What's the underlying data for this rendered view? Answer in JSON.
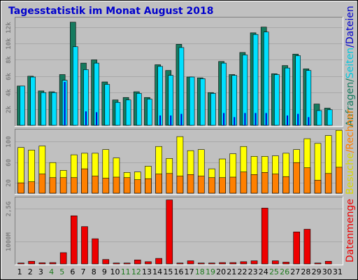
{
  "title": "Tagesstatistik im Monat August 2018",
  "colors": {
    "background": "#C0C0C0",
    "panel": "#C0C0C0",
    "title": "#0000CC",
    "anfragen": "#157A5E",
    "seiten": "#00E0FF",
    "dateien": "#0000CC",
    "besuche": "#FFFF00",
    "rechner": "#FF8000",
    "datenmenge": "#EE0000",
    "weekend_label": "#1E7A1E",
    "weekday_label": "#000000"
  },
  "side_labels": {
    "top": [
      {
        "text": "Anfragen",
        "color": "#157A5E"
      },
      {
        "text": "/",
        "color": "#157A5E"
      },
      {
        "text": "Seiten",
        "color": "#00C8E0"
      },
      {
        "text": "/",
        "color": "#0000CC"
      },
      {
        "text": "Dateien",
        "color": "#0000CC"
      }
    ],
    "middle": [
      {
        "text": "Besuche",
        "color": "#D8D800"
      },
      {
        "text": "/",
        "color": "#FF8000"
      },
      {
        "text": "Rechner",
        "color": "#FF8000"
      }
    ],
    "bottom": [
      {
        "text": "Datenmenge",
        "color": "#EE0000"
      }
    ]
  },
  "chart_data": [
    {
      "type": "bar",
      "name": "requests",
      "ylim": [
        0,
        13000
      ],
      "yticks": [
        2000,
        4000,
        6000,
        8000,
        10000,
        12000
      ],
      "ytick_labels": [
        "2k",
        "4k",
        "6k",
        "8k",
        "10k",
        "12k"
      ],
      "categories": [
        "1",
        "2",
        "3",
        "4",
        "5",
        "6",
        "7",
        "8",
        "9",
        "10",
        "11",
        "12",
        "13",
        "14",
        "15",
        "16",
        "17",
        "18",
        "19",
        "20",
        "21",
        "22",
        "23",
        "24",
        "25",
        "26",
        "27",
        "28",
        "29",
        "30",
        "31"
      ],
      "series": [
        {
          "name": "Anfragen",
          "values": [
            4800,
            6000,
            4200,
            4100,
            6200,
            12600,
            7600,
            8000,
            5300,
            3100,
            3400,
            4100,
            3400,
            7400,
            6700,
            9900,
            5900,
            5800,
            4000,
            7800,
            6200,
            8900,
            11300,
            12000,
            6300,
            7300,
            8700,
            6900,
            2600,
            2100,
            0
          ]
        },
        {
          "name": "Seiten",
          "values": [
            4800,
            5900,
            4000,
            4000,
            5500,
            9600,
            6800,
            7600,
            5000,
            2800,
            3100,
            3900,
            3200,
            7200,
            6100,
            9500,
            5900,
            5700,
            3900,
            7600,
            6100,
            8600,
            11100,
            11400,
            6200,
            7000,
            8500,
            6700,
            1800,
            1900,
            0
          ]
        },
        {
          "name": "Dateien",
          "values": [
            0,
            0,
            0,
            0,
            5300,
            0,
            1700,
            1600,
            0,
            0,
            0,
            0,
            0,
            1200,
            1200,
            1400,
            0,
            0,
            0,
            1500,
            1000,
            1500,
            1500,
            1500,
            0,
            1200,
            1400,
            1000,
            0,
            0,
            0
          ]
        }
      ]
    },
    {
      "type": "bar",
      "name": "visits",
      "ylim": [
        0,
        120
      ],
      "yticks": [
        20,
        60,
        100
      ],
      "ytick_labels": [
        "20",
        "60",
        "100"
      ],
      "categories": [
        "1",
        "2",
        "3",
        "4",
        "5",
        "6",
        "7",
        "8",
        "9",
        "10",
        "11",
        "12",
        "13",
        "14",
        "15",
        "16",
        "17",
        "18",
        "19",
        "20",
        "21",
        "22",
        "23",
        "24",
        "25",
        "26",
        "27",
        "28",
        "29",
        "30",
        "31"
      ],
      "series": [
        {
          "name": "Besuche",
          "values": [
            88,
            83,
            91,
            59,
            44,
            74,
            77,
            77,
            84,
            68,
            40,
            41,
            52,
            90,
            67,
            109,
            82,
            84,
            47,
            66,
            76,
            90,
            71,
            71,
            72,
            77,
            84,
            105,
            96,
            111,
            121
          ]
        },
        {
          "name": "Rechner",
          "values": [
            20,
            22,
            37,
            30,
            30,
            30,
            47,
            33,
            29,
            31,
            30,
            26,
            28,
            37,
            38,
            33,
            36,
            33,
            30,
            30,
            31,
            41,
            36,
            40,
            37,
            32,
            59,
            49,
            25,
            38,
            50
          ]
        }
      ]
    },
    {
      "type": "bar",
      "name": "traffic",
      "ylim": [
        0,
        2950
      ],
      "yticks": [
        1000,
        2500
      ],
      "ytick_labels": [
        "1000M",
        "2,5G"
      ],
      "categories": [
        "1",
        "2",
        "3",
        "4",
        "5",
        "6",
        "7",
        "8",
        "9",
        "10",
        "11",
        "12",
        "13",
        "14",
        "15",
        "16",
        "17",
        "18",
        "19",
        "20",
        "21",
        "22",
        "23",
        "24",
        "25",
        "26",
        "27",
        "28",
        "29",
        "30",
        "31"
      ],
      "series": [
        {
          "name": "Datenmenge",
          "values": [
            40,
            120,
            50,
            60,
            510,
            2180,
            1690,
            1140,
            200,
            40,
            40,
            180,
            100,
            250,
            2900,
            40,
            140,
            40,
            40,
            60,
            60,
            100,
            140,
            2530,
            140,
            80,
            1450,
            1570,
            40,
            120,
            0
          ]
        }
      ]
    }
  ],
  "x_labels": [
    {
      "text": "1",
      "weekend": false
    },
    {
      "text": "2",
      "weekend": false
    },
    {
      "text": "3",
      "weekend": false
    },
    {
      "text": "4",
      "weekend": true
    },
    {
      "text": "5",
      "weekend": true
    },
    {
      "text": "6",
      "weekend": false
    },
    {
      "text": "7",
      "weekend": false
    },
    {
      "text": "8",
      "weekend": false
    },
    {
      "text": "9",
      "weekend": false
    },
    {
      "text": "10",
      "weekend": false
    },
    {
      "text": "11",
      "weekend": true
    },
    {
      "text": "12",
      "weekend": true
    },
    {
      "text": "13",
      "weekend": false
    },
    {
      "text": "14",
      "weekend": false
    },
    {
      "text": "15",
      "weekend": false
    },
    {
      "text": "16",
      "weekend": false
    },
    {
      "text": "17",
      "weekend": false
    },
    {
      "text": "18",
      "weekend": true
    },
    {
      "text": "19",
      "weekend": true
    },
    {
      "text": "20",
      "weekend": false
    },
    {
      "text": "21",
      "weekend": false
    },
    {
      "text": "22",
      "weekend": false
    },
    {
      "text": "23",
      "weekend": false
    },
    {
      "text": "24",
      "weekend": false
    },
    {
      "text": "25",
      "weekend": true
    },
    {
      "text": "26",
      "weekend": true
    },
    {
      "text": "27",
      "weekend": false
    },
    {
      "text": "28",
      "weekend": false
    },
    {
      "text": "29",
      "weekend": false
    },
    {
      "text": "30",
      "weekend": false
    },
    {
      "text": "31",
      "weekend": false
    }
  ]
}
